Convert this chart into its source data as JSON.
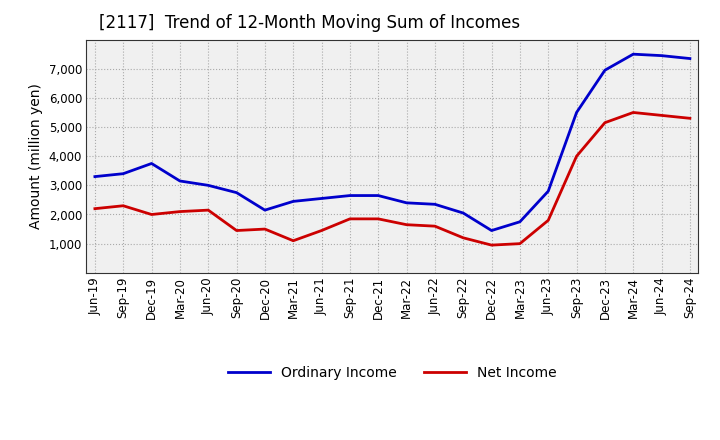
{
  "title": "[2117]  Trend of 12-Month Moving Sum of Incomes",
  "ylabel": "Amount (million yen)",
  "labels": [
    "Jun-19",
    "Sep-19",
    "Dec-19",
    "Mar-20",
    "Jun-20",
    "Sep-20",
    "Dec-20",
    "Mar-21",
    "Jun-21",
    "Sep-21",
    "Dec-21",
    "Mar-22",
    "Jun-22",
    "Sep-22",
    "Dec-22",
    "Mar-23",
    "Jun-23",
    "Sep-23",
    "Dec-23",
    "Mar-24",
    "Jun-24",
    "Sep-24"
  ],
  "ordinary_income": [
    3300,
    3400,
    3750,
    3150,
    3000,
    2750,
    2150,
    2450,
    2550,
    2650,
    2650,
    2400,
    2350,
    2050,
    1450,
    1750,
    2800,
    5500,
    6950,
    7500,
    7450,
    7350
  ],
  "net_income": [
    2200,
    2300,
    2000,
    2100,
    2150,
    1450,
    1500,
    1100,
    1450,
    1850,
    1850,
    1650,
    1600,
    1200,
    950,
    1000,
    1800,
    4000,
    5150,
    5500,
    5400,
    5300
  ],
  "ordinary_color": "#0000cc",
  "net_color": "#cc0000",
  "ylim_min": 0,
  "ylim_max": 8000,
  "yticks": [
    1000,
    2000,
    3000,
    4000,
    5000,
    6000,
    7000
  ],
  "plot_bg_color": "#f0f0f0",
  "fig_bg_color": "#ffffff",
  "grid_color": "#aaaaaa",
  "title_fontsize": 12,
  "axis_label_fontsize": 10,
  "tick_fontsize": 8.5,
  "legend_fontsize": 10,
  "line_width": 2.0
}
